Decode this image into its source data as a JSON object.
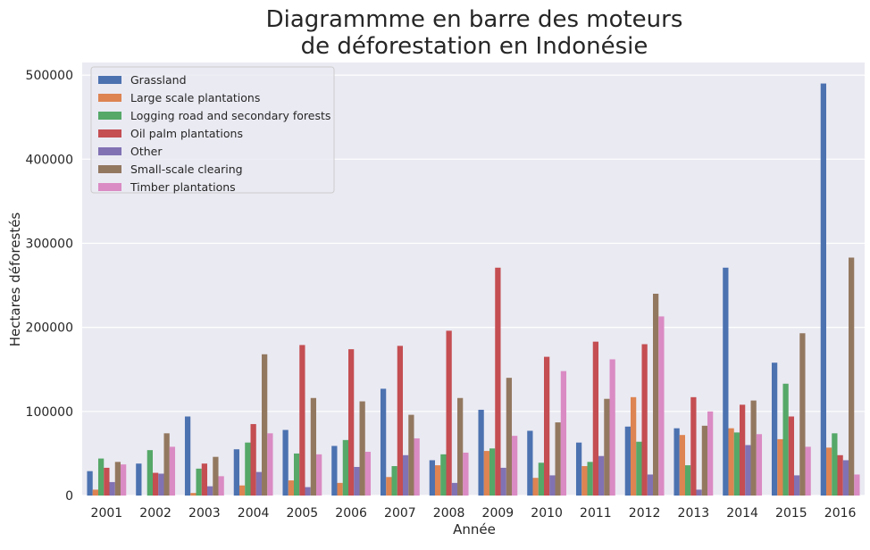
{
  "chart_data": {
    "type": "bar",
    "title_line1": "Diagrammme en barre des moteurs",
    "title_line2": "de déforestation en Indonésie",
    "xlabel": "Année",
    "ylabel": "Hectares déforestés",
    "ylim": [
      0,
      515000
    ],
    "yticks": [
      0,
      100000,
      200000,
      300000,
      400000,
      500000
    ],
    "grid": true,
    "legend_position": "top-left",
    "categories": [
      "2001",
      "2002",
      "2003",
      "2004",
      "2005",
      "2006",
      "2007",
      "2008",
      "2009",
      "2010",
      "2011",
      "2012",
      "2013",
      "2014",
      "2015",
      "2016"
    ],
    "series": [
      {
        "name": "Grassland",
        "color": "#4c72b0",
        "values": [
          29000,
          38000,
          94000,
          55000,
          78000,
          59000,
          127000,
          42000,
          102000,
          77000,
          63000,
          82000,
          80000,
          271000,
          158000,
          490000
        ]
      },
      {
        "name": "Large scale plantations",
        "color": "#dd8452",
        "values": [
          7000,
          0,
          3000,
          12000,
          18000,
          15000,
          22000,
          36000,
          53000,
          21000,
          35000,
          117000,
          72000,
          80000,
          67000,
          57000
        ]
      },
      {
        "name": "Logging road and secondary forests",
        "color": "#55a868",
        "values": [
          44000,
          54000,
          32000,
          63000,
          50000,
          66000,
          35000,
          49000,
          56000,
          39000,
          40000,
          64000,
          36000,
          75000,
          133000,
          74000
        ]
      },
      {
        "name": "Oil palm plantations",
        "color": "#c44e52",
        "values": [
          33000,
          27000,
          38000,
          85000,
          179000,
          174000,
          178000,
          196000,
          271000,
          165000,
          183000,
          180000,
          117000,
          108000,
          94000,
          48000
        ]
      },
      {
        "name": "Other",
        "color": "#8172b3",
        "values": [
          16000,
          26000,
          11000,
          28000,
          10000,
          34000,
          48000,
          15000,
          33000,
          24000,
          47000,
          25000,
          7000,
          60000,
          24000,
          42000
        ]
      },
      {
        "name": "Small-scale clearing",
        "color": "#937860",
        "values": [
          40000,
          74000,
          46000,
          168000,
          116000,
          112000,
          96000,
          116000,
          140000,
          87000,
          115000,
          240000,
          83000,
          113000,
          193000,
          283000
        ]
      },
      {
        "name": "Timber plantations",
        "color": "#da8bc3",
        "values": [
          37000,
          58000,
          23000,
          74000,
          49000,
          52000,
          68000,
          51000,
          71000,
          148000,
          162000,
          213000,
          100000,
          73000,
          58000,
          25000
        ]
      }
    ]
  }
}
